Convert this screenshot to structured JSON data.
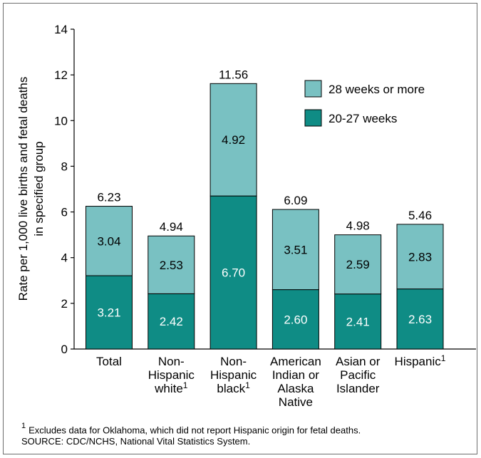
{
  "chart_data": {
    "type": "bar",
    "stacked": true,
    "ylabel_lines": [
      "Rate per 1,000 live births and fetal deaths",
      "in specified group"
    ],
    "ylim": [
      0,
      14
    ],
    "yticks": [
      "0",
      "2",
      "4",
      "6",
      "8",
      "10",
      "12",
      "14"
    ],
    "categories": [
      {
        "lines": [
          "Total"
        ],
        "sup": ""
      },
      {
        "lines": [
          "Non-",
          "Hispanic",
          "white"
        ],
        "sup": "1"
      },
      {
        "lines": [
          "Non-",
          "Hispanic",
          "black"
        ],
        "sup": "1"
      },
      {
        "lines": [
          "American",
          "Indian or",
          "Alaska",
          "Native"
        ],
        "sup": ""
      },
      {
        "lines": [
          "Asian or",
          "Pacific",
          "Islander"
        ],
        "sup": ""
      },
      {
        "lines": [
          "Hispanic"
        ],
        "sup": "1"
      }
    ],
    "series": [
      {
        "name": "20-27 weeks",
        "color": "#0f8c85",
        "values": [
          3.21,
          2.42,
          6.7,
          2.6,
          2.41,
          2.63
        ],
        "labels": [
          "3.21",
          "2.42",
          "6.70",
          "2.60",
          "2.41",
          "2.63"
        ]
      },
      {
        "name": "28 weeks or more",
        "color": "#79c1c2",
        "values": [
          3.04,
          2.53,
          4.92,
          3.51,
          2.59,
          2.83
        ],
        "labels": [
          "3.04",
          "2.53",
          "4.92",
          "3.51",
          "2.59",
          "2.83"
        ]
      }
    ],
    "totals": [
      "6.23",
      "4.94",
      "11.56",
      "6.09",
      "4.98",
      "5.46"
    ],
    "legend_order": [
      1,
      0
    ],
    "legend_position": "top-right"
  },
  "footnotes": {
    "note_marker": "1",
    "note_text": "Excludes data for Oklahoma, which did not report Hispanic origin for fetal deaths.",
    "source": "SOURCE: CDC/NCHS, National Vital Statistics System."
  }
}
